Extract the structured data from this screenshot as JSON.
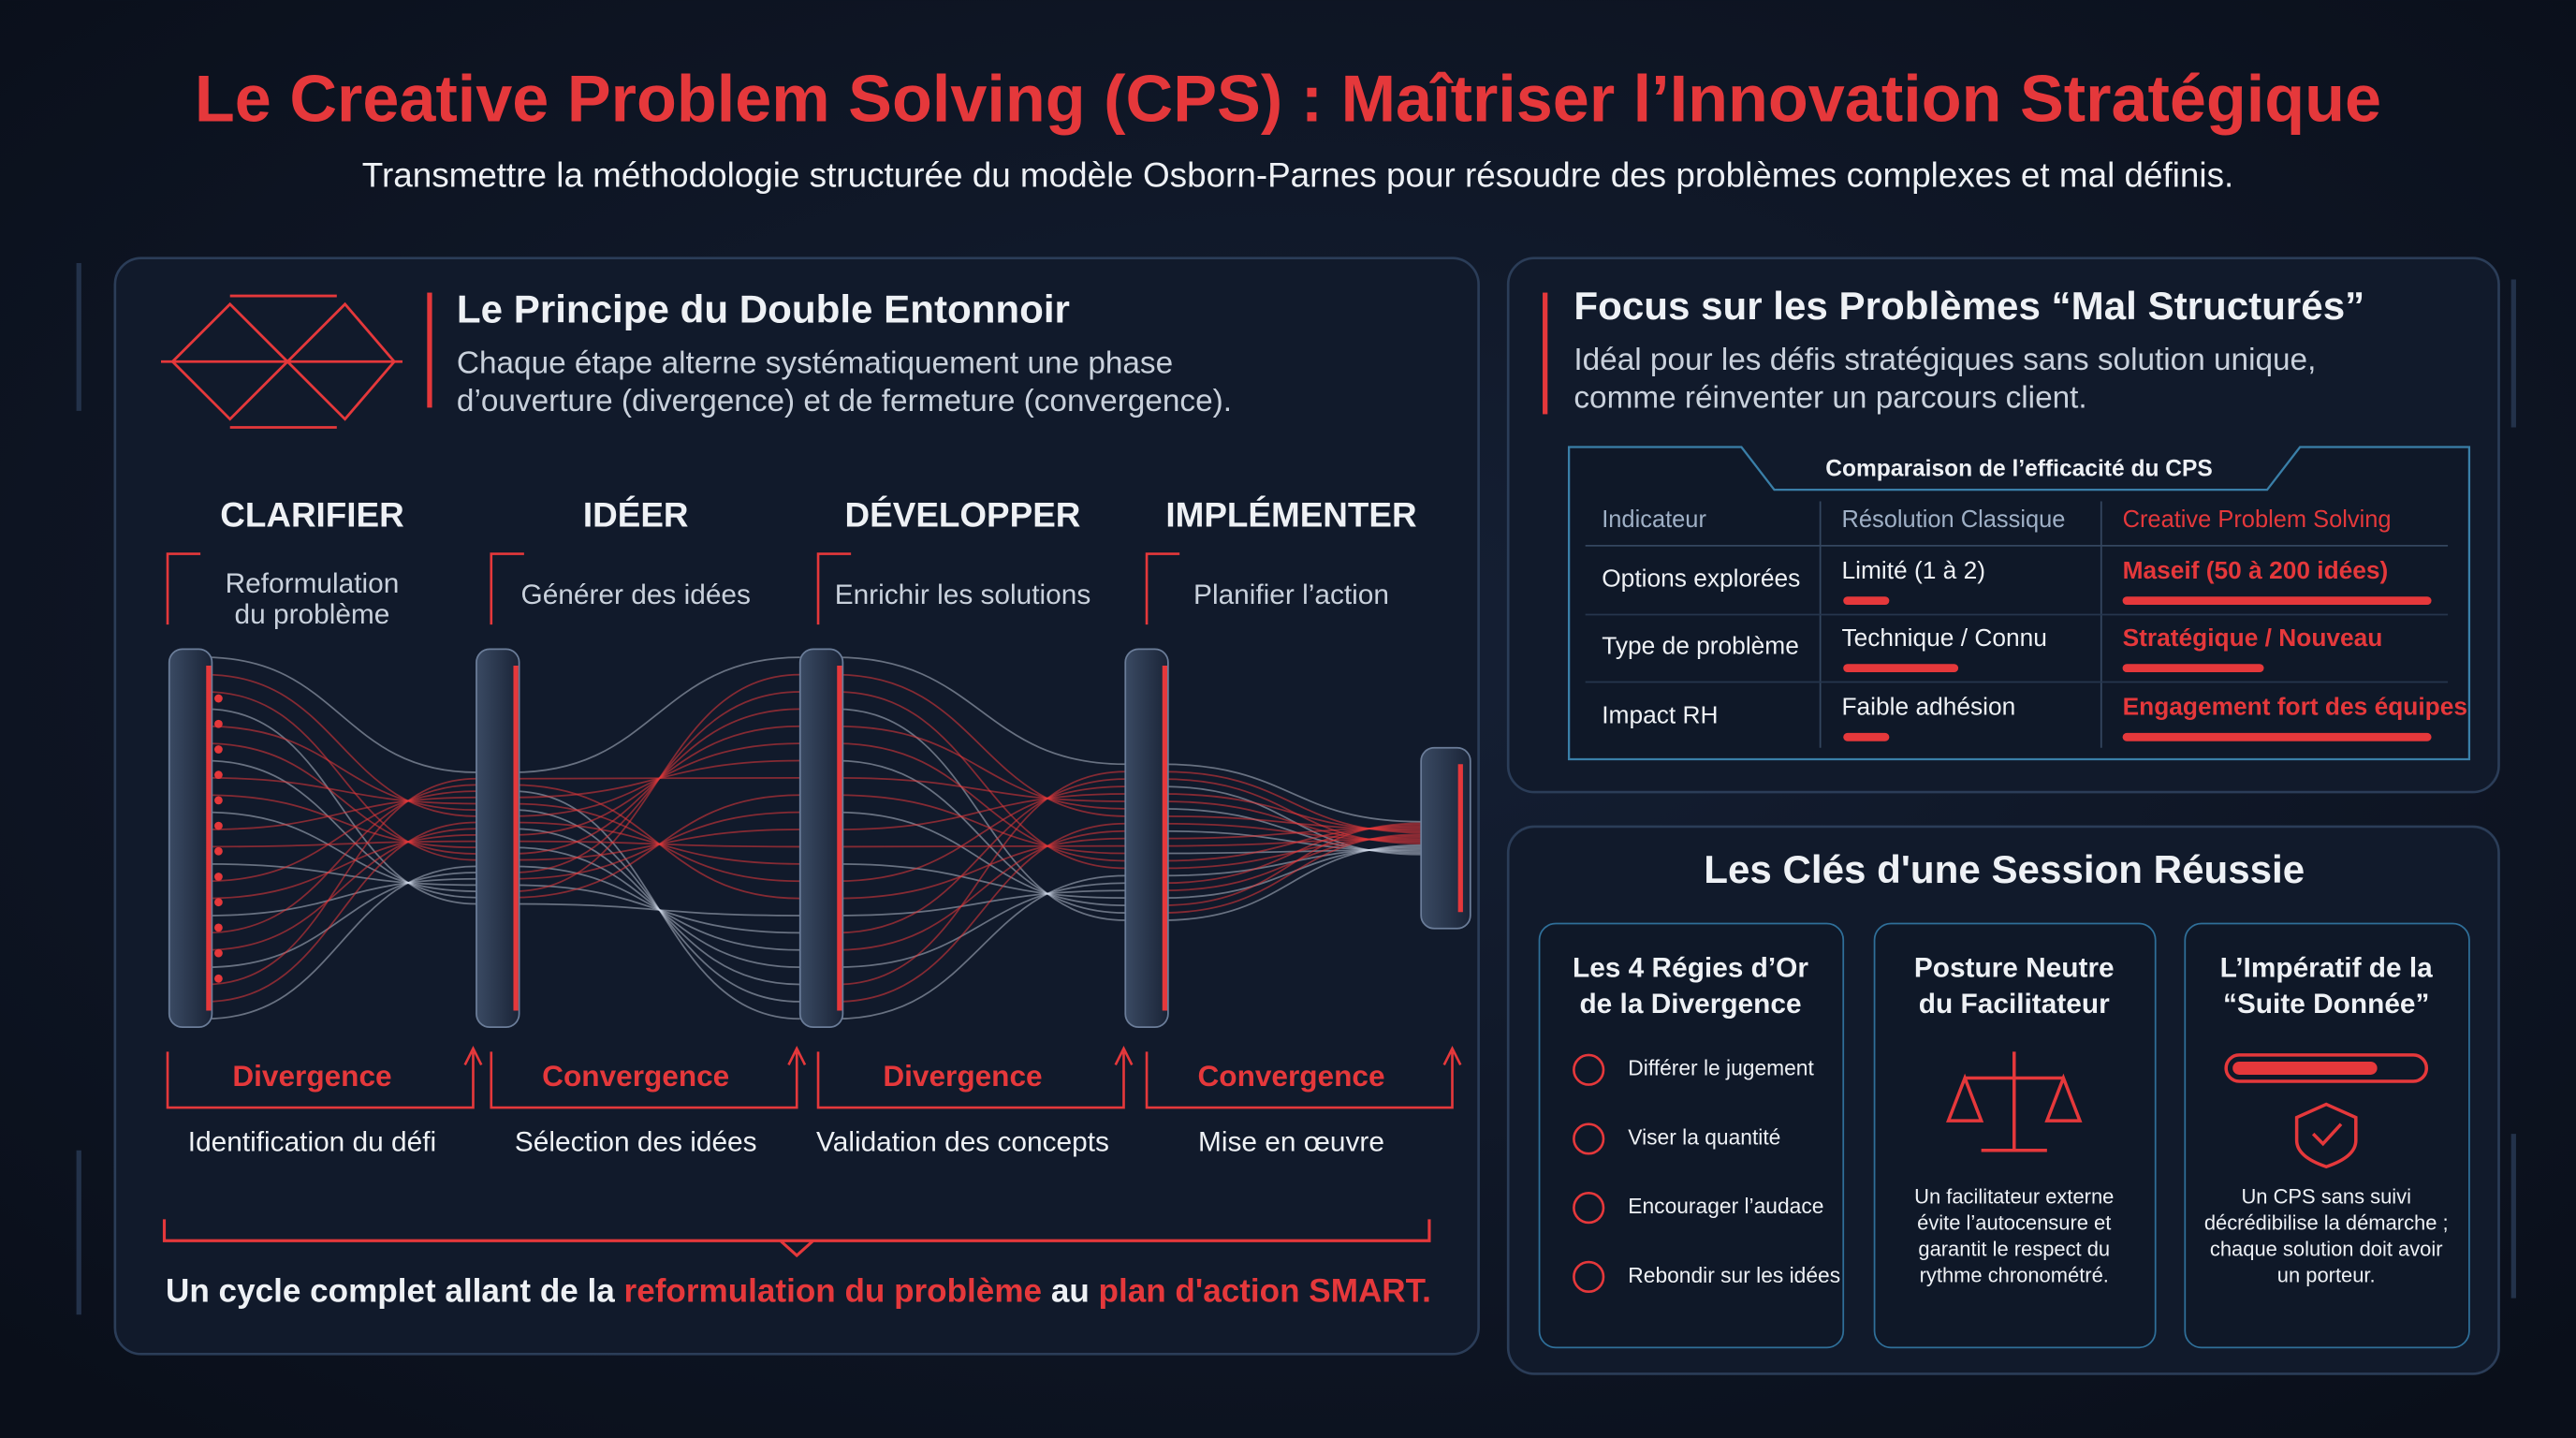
{
  "header": {
    "title": "Le Creative Problem Solving (CPS) : Maîtriser l’Innovation Stratégique",
    "subtitle": "Transmettre la méthodologie structurée du modèle Osborn-Parnes pour résoudre des problèmes complexes et mal définis."
  },
  "double_funnel": {
    "title": "Le Principe du Double Entonnoir",
    "description": [
      "Chaque étape alterne systématiquement une phase",
      "d’ouverture (divergence) et de fermeture (convergence)."
    ],
    "stages": [
      {
        "name": "CLARIFIER",
        "description": [
          "Reformulation",
          "du problème"
        ],
        "phase": "Divergence",
        "outcome": "Identification du défi"
      },
      {
        "name": "IDÉER",
        "description": [
          "Générer des idées"
        ],
        "phase": "Convergence",
        "outcome": "Sélection des idées"
      },
      {
        "name": "DÉVELOPPER",
        "description": [
          "Enrichir les solutions"
        ],
        "phase": "Divergence",
        "outcome": "Validation des concepts"
      },
      {
        "name": "IMPLÉMENTER",
        "description": [
          "Planifier l’action"
        ],
        "phase": "Convergence",
        "outcome": "Mise en œuvre"
      }
    ],
    "summary": [
      "Un cycle complet allant de la ",
      "reformulation du problème",
      " au ",
      "plan d'action SMART."
    ]
  },
  "focus": {
    "title": "Focus sur les Problèmes “Mal Structurés”",
    "description": [
      "Idéal pour les défis stratégiques sans solution unique,",
      "comme réinventer un parcours client."
    ],
    "table": {
      "title": "Comparaison de l’efficacité du CPS",
      "columns": [
        "Indicateur",
        "Résolution Classique",
        "Creative Problem Solving"
      ],
      "rows": [
        [
          "Options explorées",
          "Limité (1 à 2)",
          "Maseif (50 à 200 idées)"
        ],
        [
          "Type de problème",
          "Technique / Connu",
          "Stratégique / Nouveau"
        ],
        [
          "Impact RH",
          "Faible adhésion",
          "Engagement fort des équipes"
        ]
      ]
    }
  },
  "keys": {
    "title": "Les Clés d'une Session Réussie",
    "cards": [
      {
        "title": [
          "Les 4 Régies d’Or",
          "de la Divergence"
        ],
        "items": [
          "Différer le jugement",
          "Viser la quantité",
          "Encourager l’audace",
          "Rebondir sur les idées"
        ]
      },
      {
        "title": [
          "Posture Neutre",
          "du Facilitateur"
        ],
        "text": [
          "Un facilitateur externe",
          "évite l’autocensure et",
          "garantit le respect du",
          "rythme chronométré."
        ]
      },
      {
        "title": [
          "L’Impératif de la",
          "“Suite Donnée”"
        ],
        "text": [
          "Un CPS sans suivi",
          "décrédibilise la démarche ;",
          "chaque solution doit avoir",
          "un porteur."
        ]
      }
    ]
  }
}
